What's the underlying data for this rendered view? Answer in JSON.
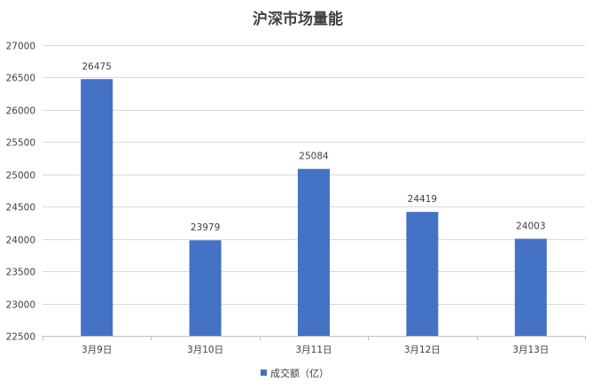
{
  "chart_data": {
    "type": "bar",
    "title": "沪深市场量能",
    "categories": [
      "3月9日",
      "3月10日",
      "3月11日",
      "3月12日",
      "3月13日"
    ],
    "series": [
      {
        "name": "成交额（亿）",
        "values": [
          26475,
          23979,
          25084,
          24419,
          24003
        ],
        "color": "#4472C4"
      }
    ],
    "ylim": [
      22500,
      27000
    ],
    "yticks": [
      22500,
      23000,
      23500,
      24000,
      24500,
      25000,
      25500,
      26000,
      26500,
      27000
    ],
    "grid": true,
    "legend": "bottom",
    "data_labels": true
  }
}
